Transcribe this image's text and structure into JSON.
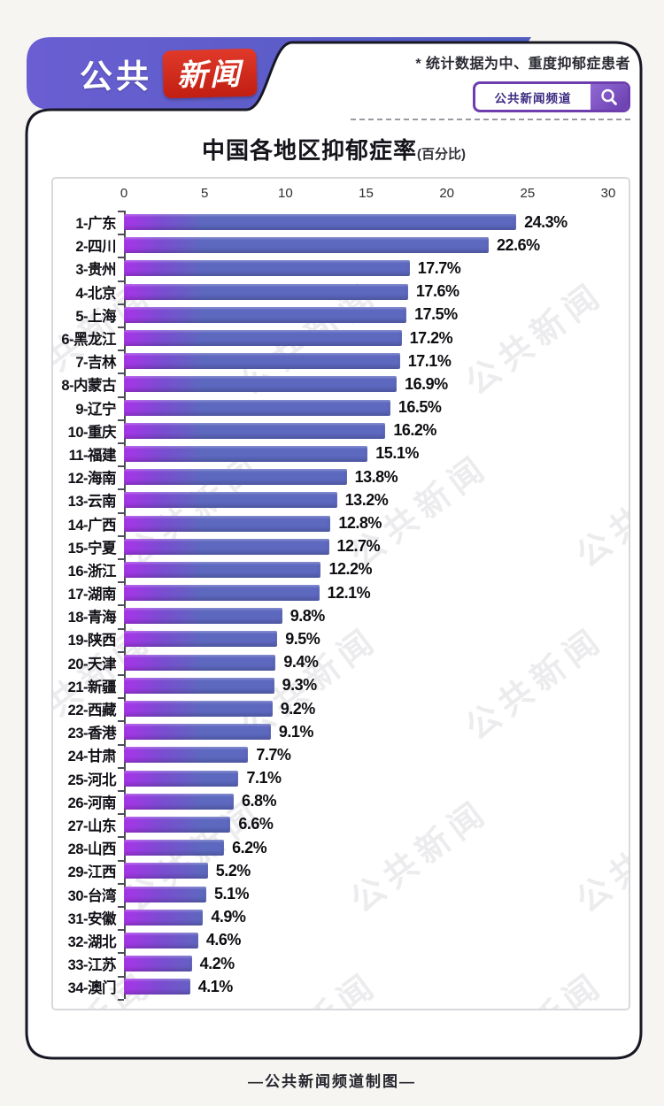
{
  "header": {
    "logo_part1": "公共",
    "logo_part2": "新闻",
    "note": "* 统计数据为中、重度抑郁症患者",
    "search": {
      "text": "公共新闻频道"
    }
  },
  "title": {
    "main": "中国各地区抑郁症率",
    "sub": "(百分比)"
  },
  "watermark_text": "公共新闻",
  "footer_text": "—公共新闻频道制图—",
  "colors": {
    "banner_purple_left": "#6a5ed2",
    "banner_purple_right": "#4f5cc0",
    "logo_red": "#cd2318",
    "search_border_purple": "#6e3dae",
    "bar_main": "#5d68bf",
    "bar_left_accent": "#a834ea",
    "card_border": "#181824",
    "panel_border": "#d9d9dd"
  },
  "chart_data": {
    "type": "bar",
    "orientation": "horizontal",
    "title": "中国各地区抑郁症率(百分比)",
    "xlabel": "",
    "ylabel": "",
    "xlim": [
      0,
      30
    ],
    "axis_ticks": [
      0,
      5,
      10,
      15,
      20,
      25,
      30
    ],
    "grid": false,
    "legend": "none",
    "categories": [
      "1-广东",
      "2-四川",
      "3-贵州",
      "4-北京",
      "5-上海",
      "6-黑龙江",
      "7-吉林",
      "8-内蒙古",
      "9-辽宁",
      "10-重庆",
      "11-福建",
      "12-海南",
      "13-云南",
      "14-广西",
      "15-宁夏",
      "16-浙江",
      "17-湖南",
      "18-青海",
      "19-陕西",
      "20-天津",
      "21-新疆",
      "22-西藏",
      "23-香港",
      "24-甘肃",
      "25-河北",
      "26-河南",
      "27-山东",
      "28-山西",
      "29-江西",
      "30-台湾",
      "31-安徽",
      "32-湖北",
      "33-江苏",
      "34-澳门"
    ],
    "values": [
      24.3,
      22.6,
      17.7,
      17.6,
      17.5,
      17.2,
      17.1,
      16.9,
      16.5,
      16.2,
      15.1,
      13.8,
      13.2,
      12.8,
      12.7,
      12.2,
      12.1,
      9.8,
      9.5,
      9.4,
      9.3,
      9.2,
      9.1,
      7.7,
      7.1,
      6.8,
      6.6,
      6.2,
      5.2,
      5.1,
      4.9,
      4.6,
      4.2,
      4.1
    ],
    "value_labels": [
      "24.3%",
      "22.6%",
      "17.7%",
      "17.6%",
      "17.5%",
      "17.2%",
      "17.1%",
      "16.9%",
      "16.5%",
      "16.2%",
      "15.1%",
      "13.8%",
      "13.2%",
      "12.8%",
      "12.7%",
      "12.2%",
      "12.1%",
      "9.8%",
      "9.5%",
      "9.4%",
      "9.3%",
      "9.2%",
      "9.1%",
      "7.7%",
      "7.1%",
      "6.8%",
      "6.6%",
      "6.2%",
      "5.2%",
      "5.1%",
      "4.9%",
      "4.6%",
      "4.2%",
      "4.1%"
    ]
  }
}
